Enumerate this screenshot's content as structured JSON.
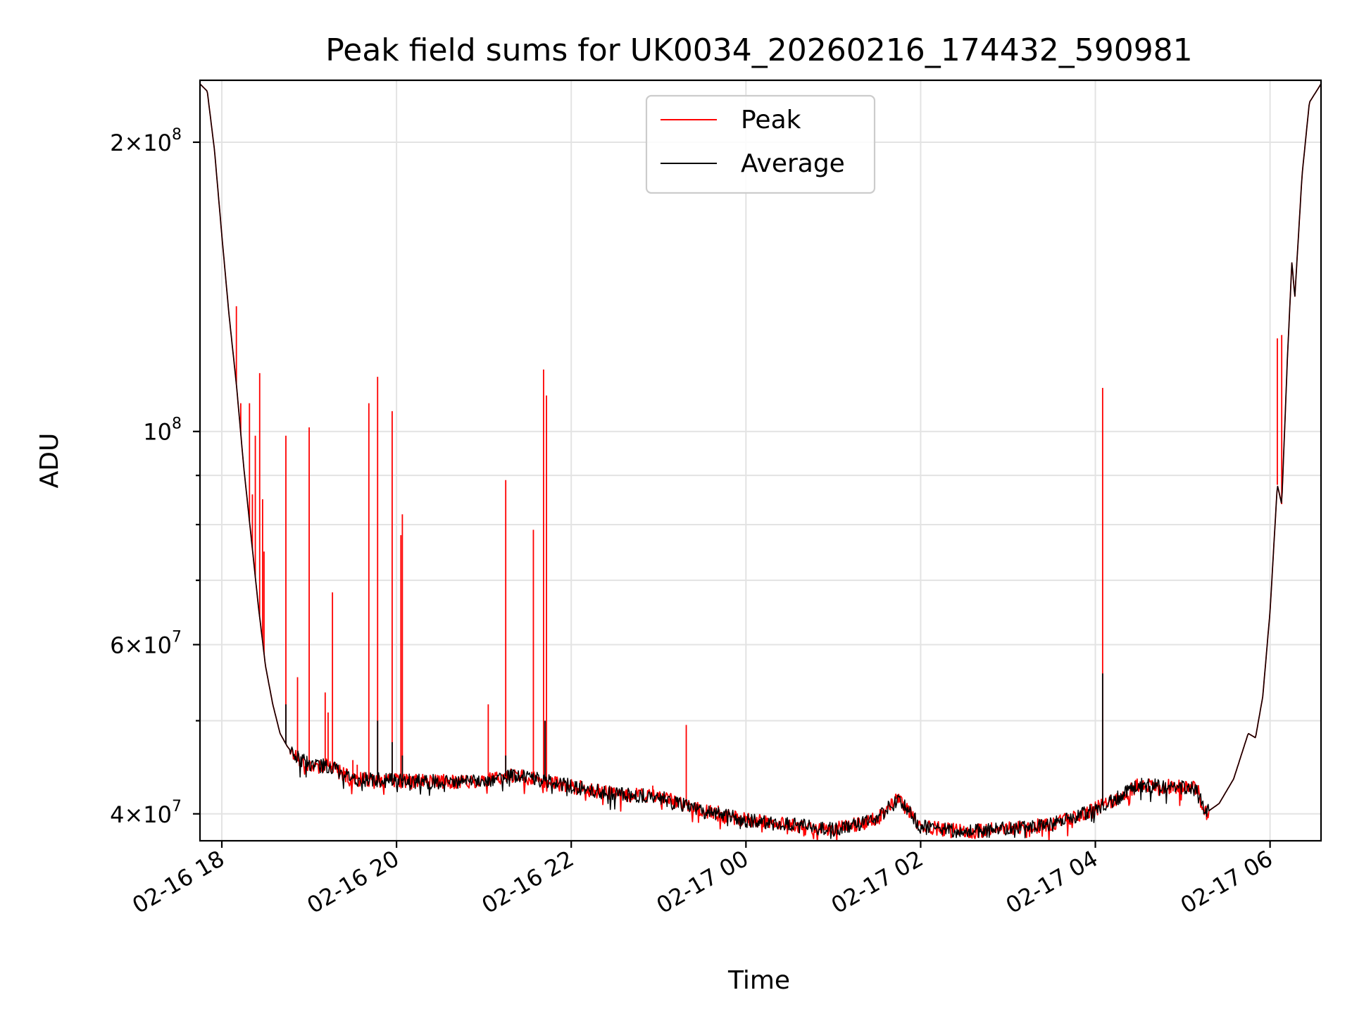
{
  "chart_data": {
    "type": "line",
    "title": "Peak field sums for UK0034_20260216_174432_590981",
    "xlabel": "Time",
    "ylabel": "ADU",
    "y_scale": "log",
    "ylim": [
      37500000,
      232000000
    ],
    "xlim": [
      "2026-02-16 17:45",
      "2026-02-17 06:35"
    ],
    "grid": true,
    "legend_position": "top-center",
    "x_tick_labels": [
      "02-16 18",
      "02-16 20",
      "02-16 22",
      "02-17 00",
      "02-17 02",
      "02-17 04",
      "02-17 06"
    ],
    "x_ticks": [
      "2026-02-16 18:00",
      "2026-02-16 20:00",
      "2026-02-16 22:00",
      "2026-02-17 00:00",
      "2026-02-17 02:00",
      "2026-02-17 04:00",
      "2026-02-17 06:00"
    ],
    "y_ticks": [
      {
        "value": 200000000,
        "mant": "2",
        "exp": "8"
      },
      {
        "value": 100000000,
        "mant": "",
        "exp": "8"
      },
      {
        "value": 60000000,
        "mant": "6",
        "exp": "7"
      },
      {
        "value": 40000000,
        "mant": "4",
        "exp": "7"
      }
    ],
    "y_minor_ticks": [
      50000000,
      70000000,
      80000000,
      90000000
    ],
    "series": [
      {
        "name": "Peak",
        "color": "#ff0000",
        "spikes": [
          [
            "2026-02-16 18:10",
            135000000
          ],
          [
            "2026-02-16 18:13",
            107000000
          ],
          [
            "2026-02-16 18:19",
            107000000
          ],
          [
            "2026-02-16 18:21",
            86000000
          ],
          [
            "2026-02-16 18:23",
            99000000
          ],
          [
            "2026-02-16 18:26",
            115000000
          ],
          [
            "2026-02-16 18:28",
            85000000
          ],
          [
            "2026-02-16 18:29",
            75000000
          ],
          [
            "2026-02-16 18:44",
            99000000
          ],
          [
            "2026-02-16 18:52",
            55500000
          ],
          [
            "2026-02-16 19:00",
            101000000
          ],
          [
            "2026-02-16 19:07",
            45200000
          ],
          [
            "2026-02-16 19:11",
            53500000
          ],
          [
            "2026-02-16 19:13",
            51000000
          ],
          [
            "2026-02-16 19:16",
            68000000
          ],
          [
            "2026-02-16 19:30",
            45500000
          ],
          [
            "2026-02-16 19:33",
            45000000
          ],
          [
            "2026-02-16 19:41",
            107000000
          ],
          [
            "2026-02-16 19:47",
            114000000
          ],
          [
            "2026-02-16 19:57",
            105000000
          ],
          [
            "2026-02-16 20:03",
            78000000
          ],
          [
            "2026-02-16 20:04",
            82000000
          ],
          [
            "2026-02-16 21:03",
            52000000
          ],
          [
            "2026-02-16 21:15",
            89000000
          ],
          [
            "2026-02-16 21:34",
            79000000
          ],
          [
            "2026-02-16 21:41",
            116000000
          ],
          [
            "2026-02-16 21:43",
            109000000
          ],
          [
            "2026-02-16 22:56",
            42800000
          ],
          [
            "2026-02-16 23:19",
            49500000
          ],
          [
            "2026-02-16 23:41",
            40800000
          ],
          [
            "2026-02-17 04:05",
            111000000
          ],
          [
            "2026-02-17 06:05",
            125000000
          ],
          [
            "2026-02-17 06:08",
            126000000
          ]
        ],
        "values": [
          [
            "2026-02-16 17:45",
            230000000
          ],
          [
            "2026-02-16 17:50",
            226000000
          ],
          [
            "2026-02-16 17:55",
            196000000
          ],
          [
            "2026-02-16 18:00",
            160000000
          ],
          [
            "2026-02-16 18:05",
            132000000
          ],
          [
            "2026-02-16 18:10",
            112000000
          ],
          [
            "2026-02-16 18:15",
            92000000
          ],
          [
            "2026-02-16 18:20",
            78000000
          ],
          [
            "2026-02-16 18:25",
            66000000
          ],
          [
            "2026-02-16 18:30",
            57000000
          ],
          [
            "2026-02-16 18:35",
            52000000
          ],
          [
            "2026-02-16 18:40",
            48500000
          ],
          [
            "2026-02-16 18:45",
            47000000
          ],
          [
            "2026-02-16 18:50",
            46000000
          ],
          [
            "2026-02-16 19:00",
            45000000
          ],
          [
            "2026-02-16 19:15",
            44800000
          ],
          [
            "2026-02-16 19:30",
            43500000
          ],
          [
            "2026-02-16 20:00",
            43300000
          ],
          [
            "2026-02-16 20:30",
            43200000
          ],
          [
            "2026-02-16 21:00",
            43300000
          ],
          [
            "2026-02-16 21:20",
            43900000
          ],
          [
            "2026-02-16 21:45",
            43200000
          ],
          [
            "2026-02-16 22:15",
            42300000
          ],
          [
            "2026-02-16 22:45",
            41800000
          ],
          [
            "2026-02-16 23:00",
            41700000
          ],
          [
            "2026-02-16 23:30",
            40300000
          ],
          [
            "2026-02-17 00:00",
            39400000
          ],
          [
            "2026-02-17 00:30",
            39000000
          ],
          [
            "2026-02-17 01:00",
            38500000
          ],
          [
            "2026-02-17 01:30",
            39500000
          ],
          [
            "2026-02-17 01:45",
            41500000
          ],
          [
            "2026-02-17 02:00",
            38800000
          ],
          [
            "2026-02-17 02:30",
            38300000
          ],
          [
            "2026-02-17 03:00",
            38600000
          ],
          [
            "2026-02-17 03:30",
            39000000
          ],
          [
            "2026-02-17 04:00",
            40500000
          ],
          [
            "2026-02-17 04:15",
            41500000
          ],
          [
            "2026-02-17 04:30",
            42900000
          ],
          [
            "2026-02-17 05:00",
            42600000
          ],
          [
            "2026-02-17 05:10",
            42600000
          ],
          [
            "2026-02-17 05:15",
            40000000
          ],
          [
            "2026-02-17 05:25",
            41000000
          ],
          [
            "2026-02-17 05:35",
            43500000
          ],
          [
            "2026-02-17 05:45",
            48500000
          ],
          [
            "2026-02-17 05:50",
            48000000
          ],
          [
            "2026-02-17 05:55",
            53000000
          ],
          [
            "2026-02-17 06:00",
            65000000
          ],
          [
            "2026-02-17 06:05",
            88000000
          ],
          [
            "2026-02-17 06:08",
            84000000
          ],
          [
            "2026-02-17 06:12",
            120000000
          ],
          [
            "2026-02-17 06:15",
            150000000
          ],
          [
            "2026-02-17 06:17",
            138000000
          ],
          [
            "2026-02-17 06:22",
            185000000
          ],
          [
            "2026-02-17 06:27",
            220000000
          ],
          [
            "2026-02-17 06:35",
            230000000
          ]
        ]
      },
      {
        "name": "Average",
        "color": "#000000",
        "spikes": [
          [
            "2026-02-16 18:44",
            52000000
          ],
          [
            "2026-02-16 19:00",
            45500000
          ],
          [
            "2026-02-16 19:47",
            50000000
          ],
          [
            "2026-02-16 19:57",
            47500000
          ],
          [
            "2026-02-16 20:04",
            46000000
          ],
          [
            "2026-02-16 21:15",
            46000000
          ],
          [
            "2026-02-16 21:42",
            50000000
          ],
          [
            "2026-02-17 04:05",
            56000000
          ]
        ],
        "values": [
          [
            "2026-02-16 17:45",
            230000000
          ],
          [
            "2026-02-16 17:50",
            226000000
          ],
          [
            "2026-02-16 17:55",
            196000000
          ],
          [
            "2026-02-16 18:00",
            160000000
          ],
          [
            "2026-02-16 18:05",
            132000000
          ],
          [
            "2026-02-16 18:10",
            112000000
          ],
          [
            "2026-02-16 18:15",
            92000000
          ],
          [
            "2026-02-16 18:20",
            78000000
          ],
          [
            "2026-02-16 18:25",
            66000000
          ],
          [
            "2026-02-16 18:30",
            57000000
          ],
          [
            "2026-02-16 18:35",
            52000000
          ],
          [
            "2026-02-16 18:40",
            48500000
          ],
          [
            "2026-02-16 18:45",
            47000000
          ],
          [
            "2026-02-16 18:50",
            46000000
          ],
          [
            "2026-02-16 19:00",
            45000000
          ],
          [
            "2026-02-16 19:15",
            44800000
          ],
          [
            "2026-02-16 19:30",
            43500000
          ],
          [
            "2026-02-16 20:00",
            43300000
          ],
          [
            "2026-02-16 20:30",
            43200000
          ],
          [
            "2026-02-16 21:00",
            43300000
          ],
          [
            "2026-02-16 21:20",
            43900000
          ],
          [
            "2026-02-16 21:45",
            43200000
          ],
          [
            "2026-02-16 22:15",
            42300000
          ],
          [
            "2026-02-16 22:45",
            41800000
          ],
          [
            "2026-02-16 23:00",
            41700000
          ],
          [
            "2026-02-16 23:30",
            40300000
          ],
          [
            "2026-02-17 00:00",
            39400000
          ],
          [
            "2026-02-17 00:30",
            39000000
          ],
          [
            "2026-02-17 01:00",
            38500000
          ],
          [
            "2026-02-17 01:30",
            39500000
          ],
          [
            "2026-02-17 01:45",
            41500000
          ],
          [
            "2026-02-17 02:00",
            38800000
          ],
          [
            "2026-02-17 02:30",
            38300000
          ],
          [
            "2026-02-17 03:00",
            38600000
          ],
          [
            "2026-02-17 03:30",
            39000000
          ],
          [
            "2026-02-17 04:00",
            40500000
          ],
          [
            "2026-02-17 04:15",
            41500000
          ],
          [
            "2026-02-17 04:30",
            42900000
          ],
          [
            "2026-02-17 05:00",
            42600000
          ],
          [
            "2026-02-17 05:10",
            42600000
          ],
          [
            "2026-02-17 05:15",
            40000000
          ],
          [
            "2026-02-17 05:25",
            41000000
          ],
          [
            "2026-02-17 05:35",
            43500000
          ],
          [
            "2026-02-17 05:45",
            48500000
          ],
          [
            "2026-02-17 05:50",
            48000000
          ],
          [
            "2026-02-17 05:55",
            53000000
          ],
          [
            "2026-02-17 06:00",
            65000000
          ],
          [
            "2026-02-17 06:05",
            88000000
          ],
          [
            "2026-02-17 06:08",
            84000000
          ],
          [
            "2026-02-17 06:12",
            120000000
          ],
          [
            "2026-02-17 06:15",
            150000000
          ],
          [
            "2026-02-17 06:17",
            138000000
          ],
          [
            "2026-02-17 06:22",
            185000000
          ],
          [
            "2026-02-17 06:27",
            220000000
          ],
          [
            "2026-02-17 06:35",
            230000000
          ]
        ]
      }
    ]
  }
}
